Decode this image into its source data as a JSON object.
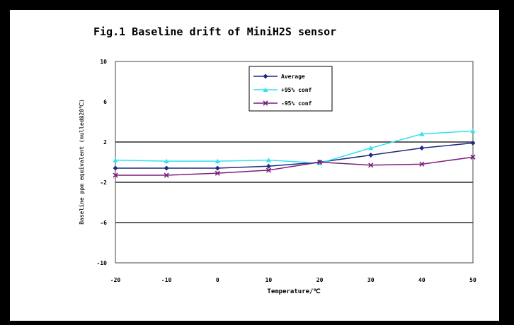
{
  "chart_data": {
    "type": "line",
    "title": "Fig.1 Baseline drift of MiniH2S sensor",
    "xlabel": "Temperature/℃",
    "ylabel": "Baseline ppm equivalent (nulled@20℃)",
    "x": [
      -20,
      -10,
      0,
      10,
      20,
      30,
      40,
      50
    ],
    "xticks": [
      "-20",
      "-10",
      "0",
      "10",
      "20",
      "30",
      "40",
      "50"
    ],
    "yticks": [
      "-10",
      "-6",
      "-2",
      "2",
      "6",
      "10"
    ],
    "ylim": [
      -10,
      10
    ],
    "xlim": [
      -20,
      50
    ],
    "gridlines_y": [
      -6,
      -2,
      2
    ],
    "legend_position": "top-center",
    "series": [
      {
        "name": "Average",
        "color": "#1f2a80",
        "marker": "diamond",
        "values": [
          -0.6,
          -0.6,
          -0.6,
          -0.4,
          0.0,
          0.7,
          1.4,
          1.9
        ]
      },
      {
        "name": "+95% conf",
        "color": "#33e0f0",
        "marker": "triangle",
        "values": [
          0.2,
          0.1,
          0.1,
          0.2,
          -0.1,
          1.4,
          2.8,
          3.1
        ]
      },
      {
        "name": "-95% conf",
        "color": "#7a1f7a",
        "marker": "x",
        "values": [
          -1.3,
          -1.3,
          -1.1,
          -0.8,
          0.0,
          -0.3,
          -0.2,
          0.5
        ]
      }
    ]
  }
}
